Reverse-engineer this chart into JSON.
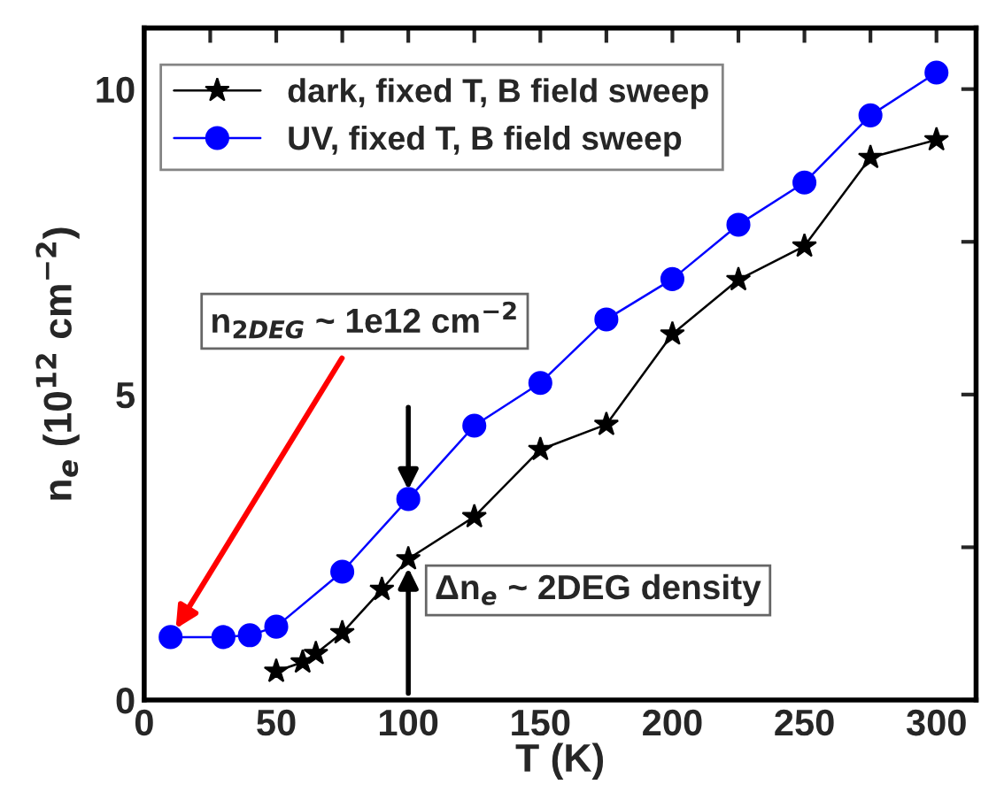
{
  "chart_data": {
    "type": "line",
    "xlabel": "T (K)",
    "ylabel": "n$_{e}$ (10$^{12}$ cm$^{−2}$)",
    "xlim": [
      0,
      315
    ],
    "ylim": [
      0,
      11
    ],
    "xticks": [
      0,
      {
        "value": 25,
        "label": null
      },
      50,
      {
        "value": 75,
        "label": null
      },
      100,
      {
        "value": 125,
        "label": null
      },
      150,
      {
        "value": 175,
        "label": null
      },
      200,
      {
        "value": 225,
        "label": null
      },
      250,
      {
        "value": 275,
        "label": null
      },
      300
    ],
    "yticks": [
      0,
      {
        "value": 2.5,
        "label": null
      },
      5,
      {
        "value": 7.5,
        "label": null
      },
      10
    ],
    "legend": "top left",
    "grid": false,
    "series": [
      {
        "name": "dark, fixed T, B field sweep",
        "color": "#000000",
        "marker": "star",
        "x": [
          50,
          60,
          65,
          75,
          90,
          100,
          125,
          150,
          175,
          200,
          225,
          250,
          275,
          300
        ],
        "values": [
          0.47,
          0.62,
          0.76,
          1.1,
          1.81,
          2.31,
          3.0,
          4.1,
          4.51,
          5.99,
          6.88,
          7.43,
          8.88,
          9.17
        ]
      },
      {
        "name": "UV, fixed T, B field sweep",
        "color": "#0000ff",
        "marker": "circle",
        "x": [
          10,
          30,
          40,
          50,
          75,
          100,
          125,
          150,
          175,
          200,
          225,
          250,
          275,
          300
        ],
        "values": [
          1.03,
          1.03,
          1.06,
          1.2,
          2.1,
          3.29,
          4.49,
          5.19,
          6.23,
          6.89,
          7.78,
          8.47,
          9.57,
          10.27
        ]
      }
    ],
    "annotations": [
      {
        "text": "n$_{2DEG}$ ~ 1e12 cm$^{−2}$",
        "x": 10,
        "y": 1.03
      },
      {
        "text": "Δn$_{e}$ ~ 2DEG density",
        "x": 100,
        "y": 2.31
      }
    ]
  }
}
